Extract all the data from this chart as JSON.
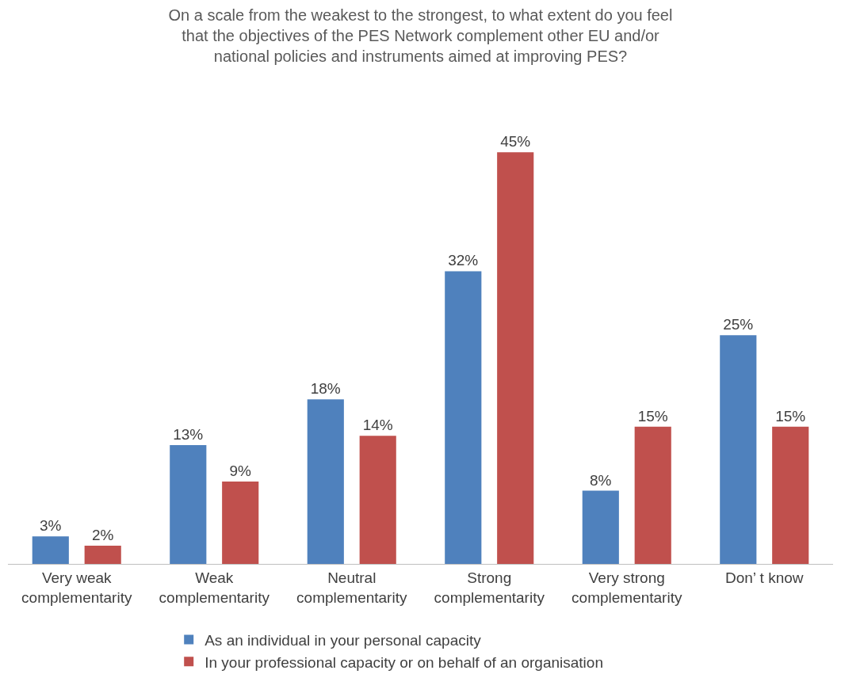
{
  "chart_data": {
    "type": "bar",
    "title": "On a scale from the weakest to the strongest, to what extent do you feel\nthat the objectives of the PES Network complement other EU and/or\nnational policies and instruments aimed at improving PES?",
    "categories": [
      "Very weak\ncomplementarity",
      "Weak\ncomplementarity",
      "Neutral\ncomplementarity",
      "Strong\ncomplementarity",
      "Very strong\ncomplementarity",
      "Don’ t know"
    ],
    "series": [
      {
        "name": "As an individual in your personal capacity",
        "color": "#4f81bd",
        "values": [
          3,
          13,
          18,
          32,
          8,
          25
        ],
        "value_labels": [
          "3%",
          "13%",
          "18%",
          "32%",
          "8%",
          "25%"
        ]
      },
      {
        "name": "In your professional capacity or on behalf of an organisation",
        "color": "#c0504d",
        "values": [
          2,
          9,
          14,
          45,
          15,
          15
        ],
        "value_labels": [
          "2%",
          "9%",
          "14%",
          "45%",
          "15%",
          "15%"
        ]
      }
    ],
    "grid": false,
    "legend": "bottom"
  }
}
